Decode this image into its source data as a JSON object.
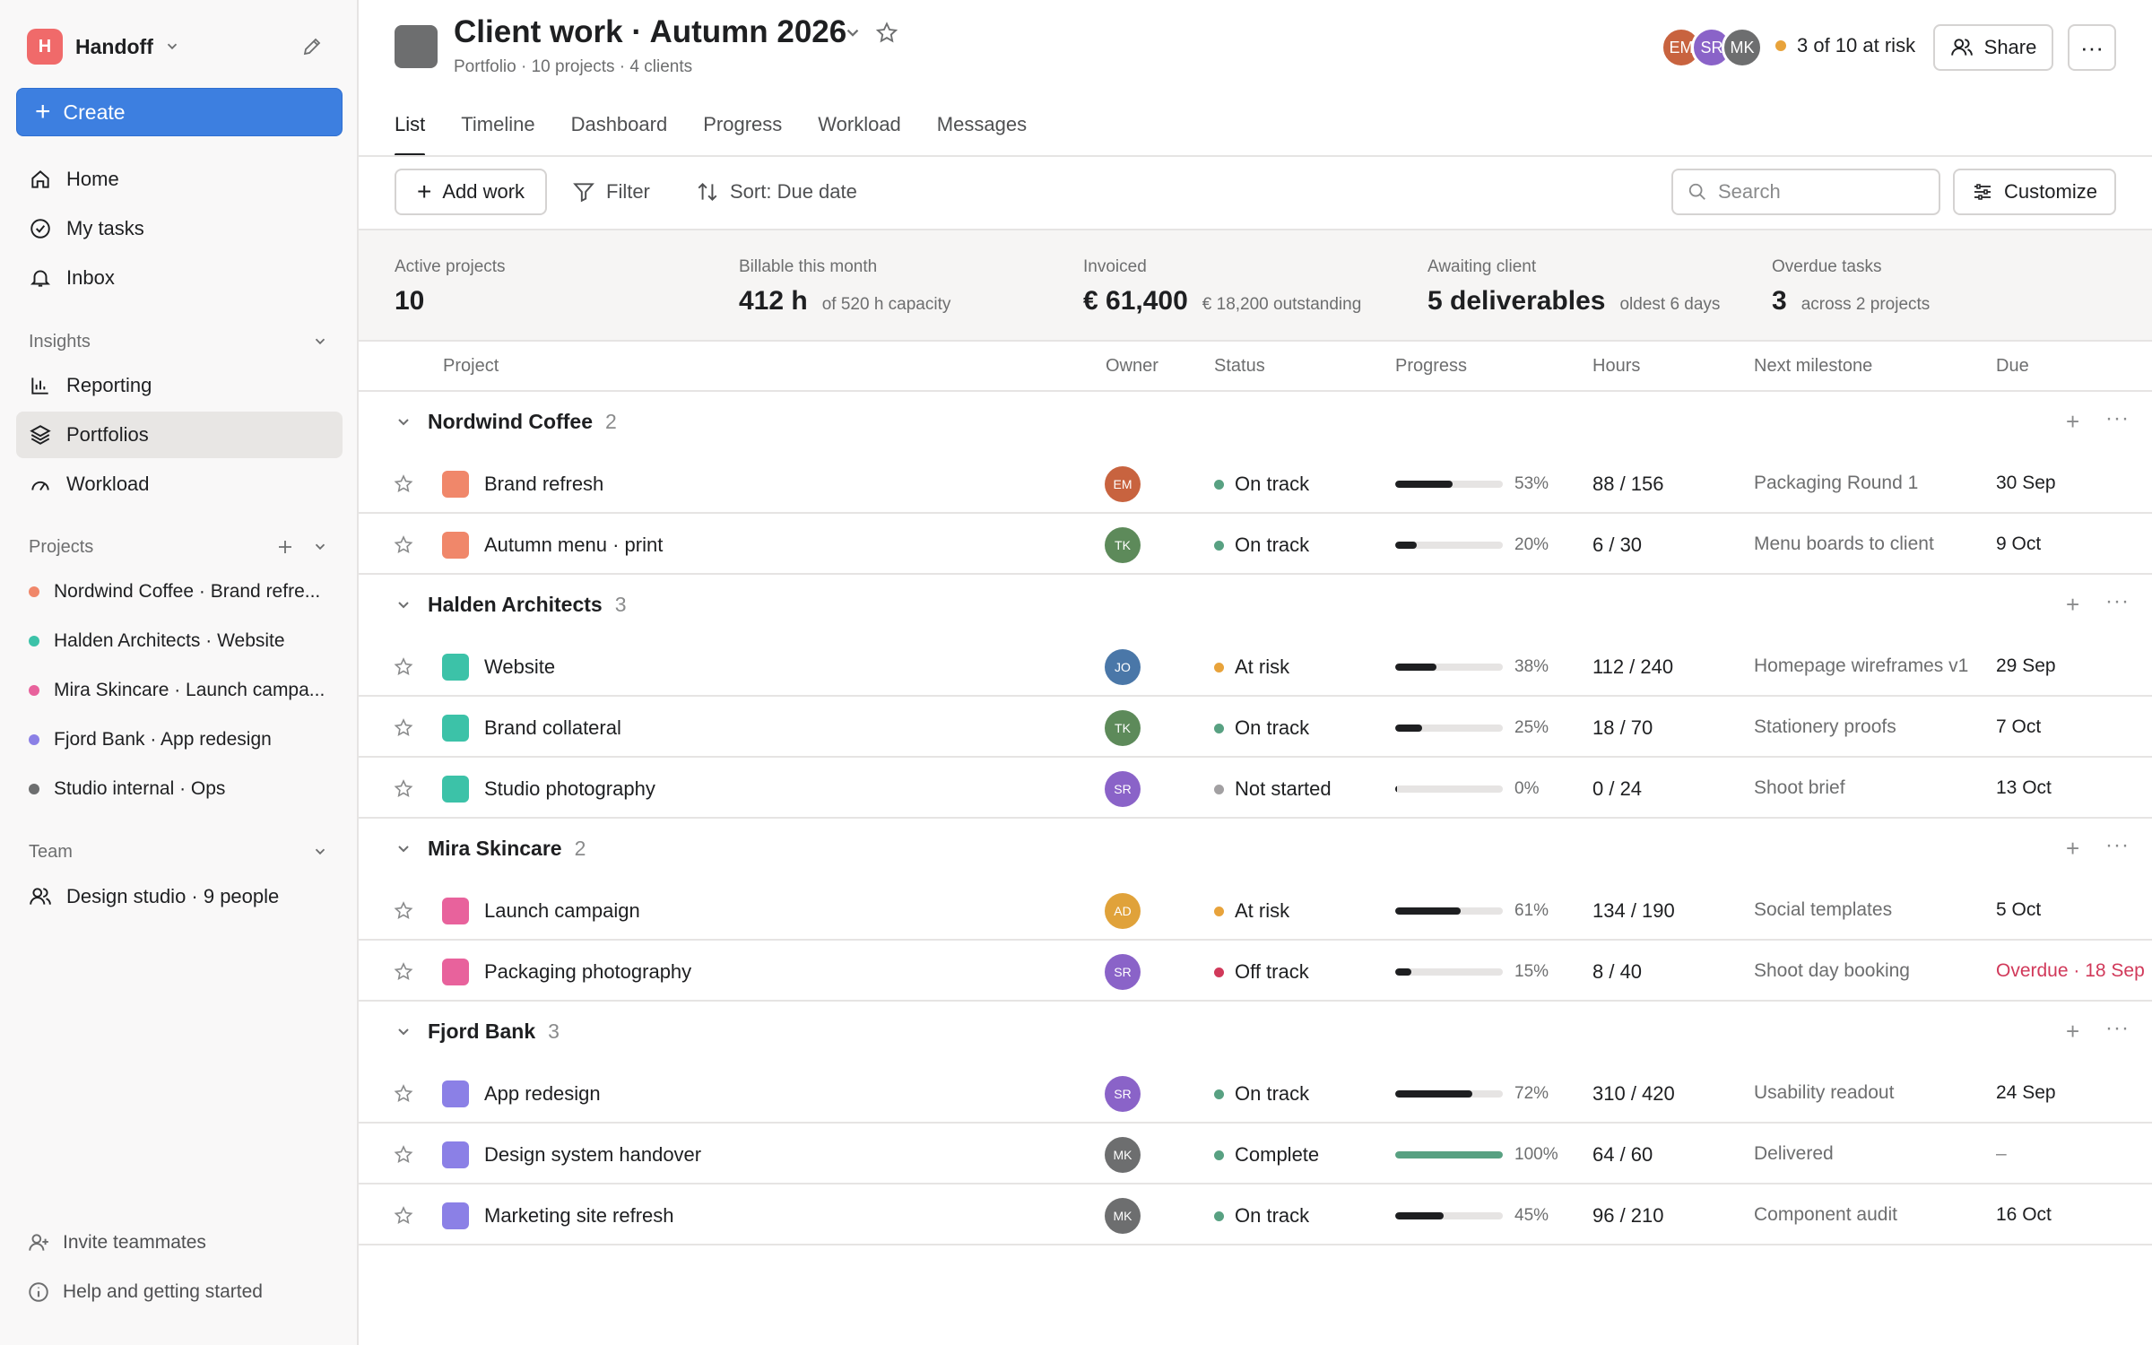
{
  "workspace": {
    "logo_letter": "H",
    "name": "Handoff"
  },
  "sidebar": {
    "create_label": "Create",
    "nav": [
      {
        "label": "Home",
        "icon": "home-icon"
      },
      {
        "label": "My tasks",
        "icon": "check-circle-icon"
      },
      {
        "label": "Inbox",
        "icon": "bell-icon"
      }
    ],
    "insights_label": "Insights",
    "insights": [
      {
        "label": "Reporting",
        "icon": "bar-chart-icon"
      },
      {
        "label": "Portfolios",
        "icon": "layers-icon",
        "active": true
      },
      {
        "label": "Workload",
        "icon": "gauge-icon"
      }
    ],
    "projects_label": "Projects",
    "projects": [
      {
        "label": "Nordwind Coffee · Brand refre...",
        "color": "#f0876a"
      },
      {
        "label": "Halden Architects · Website",
        "color": "#3cc2a8"
      },
      {
        "label": "Mira Skincare · Launch campa...",
        "color": "#e8629c"
      },
      {
        "label": "Fjord Bank · App redesign",
        "color": "#8b80e6"
      },
      {
        "label": "Studio internal · Ops",
        "color": "#6d6e6f"
      }
    ],
    "team_label": "Team",
    "team_item": "Design studio · 9 people",
    "footer": {
      "invite": "Invite teammates",
      "help": "Help and getting started"
    }
  },
  "header": {
    "title": "Client work · Autumn 2026",
    "subtitle": "Portfolio · 10 projects · 4 clients",
    "avatars": [
      {
        "initials": "EM",
        "color": "#c8633f"
      },
      {
        "initials": "SR",
        "color": "#8a63c8"
      },
      {
        "initials": "MK",
        "color": "#6d6e6f"
      }
    ],
    "risk_text": "3 of 10 at risk",
    "share_label": "Share",
    "more_label": "···"
  },
  "tabs": [
    "List",
    "Timeline",
    "Dashboard",
    "Progress",
    "Workload",
    "Messages"
  ],
  "toolbar": {
    "add_label": "Add work",
    "filter_label": "Filter",
    "sort_label": "Sort: Due date",
    "search_placeholder": "Search",
    "customize_label": "Customize"
  },
  "stats": [
    {
      "label": "Active projects",
      "value": "10",
      "sub": ""
    },
    {
      "label": "Billable this month",
      "value": "412 h",
      "sub": "of 520 h capacity"
    },
    {
      "label": "Invoiced",
      "value": "€ 61,400",
      "sub": "€ 18,200 outstanding"
    },
    {
      "label": "Awaiting client",
      "value": "5 deliverables",
      "sub": "oldest 6 days"
    },
    {
      "label": "Overdue tasks",
      "value": "3",
      "sub": "across 2 projects"
    }
  ],
  "columns": {
    "project": "Project",
    "owner": "Owner",
    "status": "Status",
    "progress": "Progress",
    "hours": "Hours",
    "milestone": "Next milestone",
    "due": "Due"
  },
  "status_colors": {
    "On track": "#58a182",
    "At risk": "#e8a33b",
    "Not started": "#a2a0a2",
    "Off track": "#d1395a",
    "Complete": "#58a182"
  },
  "groups": [
    {
      "name": "Nordwind Coffee",
      "count": "2",
      "color": "#f0876a",
      "rows": [
        {
          "name": "Brand refresh",
          "owner": "EM",
          "owner_color": "#c8633f",
          "status": "On track",
          "progress": 53,
          "pct": "53%",
          "hours": "88 / 156",
          "milestone": "Packaging Round 1",
          "due": "30 Sep"
        },
        {
          "name": "Autumn menu · print",
          "owner": "TK",
          "owner_color": "#5d8a5a",
          "status": "On track",
          "progress": 20,
          "pct": "20%",
          "hours": "6 / 30",
          "milestone": "Menu boards to client",
          "due": "9 Oct"
        }
      ]
    },
    {
      "name": "Halden Architects",
      "count": "3",
      "color": "#3cc2a8",
      "rows": [
        {
          "name": "Website",
          "owner": "JO",
          "owner_color": "#4a77a8",
          "status": "At risk",
          "progress": 38,
          "pct": "38%",
          "hours": "112 / 240",
          "milestone": "Homepage wireframes v1",
          "due": "29 Sep"
        },
        {
          "name": "Brand collateral",
          "owner": "TK",
          "owner_color": "#5d8a5a",
          "status": "On track",
          "progress": 25,
          "pct": "25%",
          "hours": "18 / 70",
          "milestone": "Stationery proofs",
          "due": "7 Oct"
        },
        {
          "name": "Studio photography",
          "owner": "SR",
          "owner_color": "#8a63c8",
          "status": "Not started",
          "progress": 0,
          "pct": "0%",
          "hours": "0 / 24",
          "milestone": "Shoot brief",
          "due": "13 Oct"
        }
      ]
    },
    {
      "name": "Mira Skincare",
      "count": "2",
      "color": "#e8629c",
      "rows": [
        {
          "name": "Launch campaign",
          "owner": "AD",
          "owner_color": "#e0a23a",
          "status": "At risk",
          "progress": 61,
          "pct": "61%",
          "hours": "134 / 190",
          "milestone": "Social templates",
          "due": "5 Oct"
        },
        {
          "name": "Packaging photography",
          "owner": "SR",
          "owner_color": "#8a63c8",
          "status": "Off track",
          "progress": 15,
          "pct": "15%",
          "hours": "8 / 40",
          "milestone": "Shoot day booking",
          "due": "Overdue · 18 Sep",
          "overdue": true
        }
      ]
    },
    {
      "name": "Fjord Bank",
      "count": "3",
      "color": "#8b80e6",
      "rows": [
        {
          "name": "App redesign",
          "owner": "SR",
          "owner_color": "#8a63c8",
          "status": "On track",
          "progress": 72,
          "pct": "72%",
          "hours": "310 / 420",
          "milestone": "Usability readout",
          "due": "24 Sep"
        },
        {
          "name": "Design system handover",
          "owner": "MK",
          "owner_color": "#6d6e6f",
          "status": "Complete",
          "progress": 100,
          "pct": "100%",
          "hours": "64 / 60",
          "milestone": "Delivered",
          "due": "–",
          "complete": true
        },
        {
          "name": "Marketing site refresh",
          "owner": "MK",
          "owner_color": "#6d6e6f",
          "status": "On track",
          "progress": 45,
          "pct": "45%",
          "hours": "96 / 210",
          "milestone": "Component audit",
          "due": "16 Oct"
        }
      ]
    }
  ]
}
